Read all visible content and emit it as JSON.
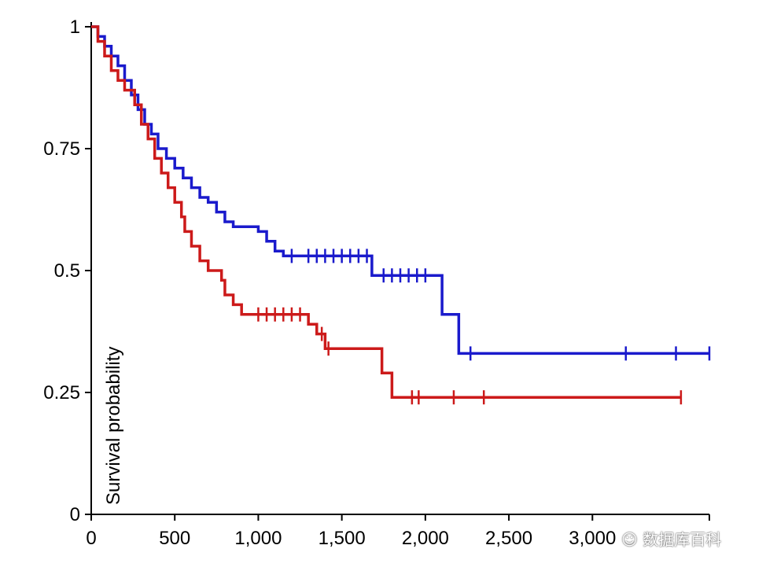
{
  "chart_data": {
    "type": "line",
    "title": "",
    "xlabel": "",
    "ylabel": "Survival probability",
    "xlim": [
      0,
      3700
    ],
    "ylim": [
      0,
      1
    ],
    "grid": false,
    "x_ticks": [
      0,
      500,
      1000,
      1500,
      2000,
      2500,
      3000
    ],
    "x_tick_labels": [
      "0",
      "500",
      "1,000",
      "1,500",
      "2,000",
      "2,500",
      "3,000"
    ],
    "y_ticks": [
      0,
      0.25,
      0.5,
      0.75,
      1
    ],
    "y_tick_labels": [
      "0",
      "0.25",
      "0.5",
      "0.75",
      "1"
    ],
    "series": [
      {
        "name": "blue",
        "color": "#1a1acc",
        "steps": [
          [
            0,
            1
          ],
          [
            40,
            0.98
          ],
          [
            80,
            0.96
          ],
          [
            120,
            0.94
          ],
          [
            160,
            0.92
          ],
          [
            200,
            0.89
          ],
          [
            240,
            0.86
          ],
          [
            280,
            0.83
          ],
          [
            320,
            0.8
          ],
          [
            360,
            0.78
          ],
          [
            400,
            0.75
          ],
          [
            450,
            0.73
          ],
          [
            500,
            0.71
          ],
          [
            550,
            0.69
          ],
          [
            600,
            0.67
          ],
          [
            650,
            0.65
          ],
          [
            700,
            0.64
          ],
          [
            750,
            0.62
          ],
          [
            800,
            0.6
          ],
          [
            850,
            0.59
          ],
          [
            1000,
            0.58
          ],
          [
            1050,
            0.56
          ],
          [
            1100,
            0.54
          ],
          [
            1150,
            0.53
          ],
          [
            1680,
            0.49
          ],
          [
            2100,
            0.41
          ],
          [
            2200,
            0.33
          ],
          [
            3700,
            0.33
          ]
        ],
        "censors": [
          1200,
          1300,
          1350,
          1400,
          1450,
          1500,
          1550,
          1600,
          1650,
          1750,
          1800,
          1850,
          1900,
          1950,
          2000,
          2270,
          3200,
          3500,
          3700
        ]
      },
      {
        "name": "red",
        "color": "#cc1a1a",
        "steps": [
          [
            0,
            1
          ],
          [
            40,
            0.97
          ],
          [
            80,
            0.94
          ],
          [
            120,
            0.91
          ],
          [
            160,
            0.89
          ],
          [
            200,
            0.87
          ],
          [
            260,
            0.84
          ],
          [
            300,
            0.8
          ],
          [
            340,
            0.77
          ],
          [
            380,
            0.73
          ],
          [
            420,
            0.7
          ],
          [
            460,
            0.67
          ],
          [
            500,
            0.64
          ],
          [
            540,
            0.61
          ],
          [
            560,
            0.58
          ],
          [
            600,
            0.55
          ],
          [
            650,
            0.52
          ],
          [
            700,
            0.5
          ],
          [
            780,
            0.48
          ],
          [
            800,
            0.45
          ],
          [
            850,
            0.43
          ],
          [
            900,
            0.41
          ],
          [
            1300,
            0.39
          ],
          [
            1350,
            0.37
          ],
          [
            1400,
            0.34
          ],
          [
            1740,
            0.29
          ],
          [
            1800,
            0.24
          ],
          [
            3530,
            0.24
          ]
        ],
        "censors": [
          1000,
          1050,
          1100,
          1150,
          1200,
          1250,
          1380,
          1420,
          1920,
          1960,
          2170,
          2350,
          3530
        ]
      }
    ]
  },
  "watermark": "数据库百科",
  "watermark_icon": "wechat-icon"
}
